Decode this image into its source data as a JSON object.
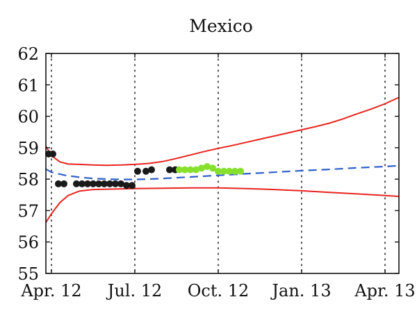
{
  "chart_data": {
    "type": "line",
    "title": "Mexico",
    "xlabel": "",
    "ylabel": "",
    "ylim": [
      55,
      62
    ],
    "yticks": [
      55,
      56,
      57,
      58,
      59,
      60,
      61,
      62
    ],
    "xlim": [
      -0.2,
      12.5
    ],
    "xticks": [
      {
        "x": 0,
        "label": "Apr. 12"
      },
      {
        "x": 3,
        "label": "Jul. 12"
      },
      {
        "x": 6,
        "label": "Oct. 12"
      },
      {
        "x": 9,
        "label": "Jan. 13"
      },
      {
        "x": 12,
        "label": "Apr. 13"
      }
    ],
    "grid": "vertical dotted lines at x ticks",
    "colors": {
      "band": "#e8231d",
      "central": "#2f5fc9",
      "observed": "#1a1a1a",
      "recent": "#86e02c"
    },
    "series": [
      {
        "style": "solid",
        "color": "#e8231d",
        "x": [
          -0.2,
          0,
          0.3,
          0.6,
          1,
          1.5,
          2,
          2.5,
          3,
          3.5,
          4,
          4.5,
          5,
          5.5,
          6,
          6.5,
          7,
          7.5,
          8,
          8.5,
          9,
          9.5,
          10,
          10.5,
          11,
          11.5,
          12,
          12.5
        ],
        "y": [
          59.05,
          58.75,
          58.55,
          58.48,
          58.47,
          58.45,
          58.44,
          58.45,
          58.47,
          58.5,
          58.56,
          58.66,
          58.77,
          58.88,
          58.98,
          59.07,
          59.17,
          59.27,
          59.37,
          59.47,
          59.57,
          59.67,
          59.78,
          59.92,
          60.08,
          60.23,
          60.4,
          60.6
        ]
      },
      {
        "style": "solid",
        "color": "#e8231d",
        "x": [
          -0.2,
          0,
          0.3,
          0.6,
          1,
          1.5,
          2,
          3,
          4,
          5,
          6,
          7,
          8,
          9,
          10,
          11,
          12,
          12.5
        ],
        "y": [
          56.62,
          56.9,
          57.25,
          57.48,
          57.62,
          57.67,
          57.68,
          57.7,
          57.71,
          57.72,
          57.72,
          57.7,
          57.67,
          57.63,
          57.58,
          57.53,
          57.48,
          57.45
        ]
      },
      {
        "style": "dashed",
        "color": "#2f5fc9",
        "x": [
          -0.2,
          0,
          0.5,
          1,
          1.5,
          2,
          2.5,
          3,
          3.5,
          4,
          5,
          6,
          7,
          8,
          9,
          10,
          11,
          12,
          12.5
        ],
        "y": [
          58.32,
          58.22,
          58.12,
          58.06,
          58.02,
          58.0,
          57.99,
          57.99,
          58.0,
          58.02,
          58.07,
          58.12,
          58.17,
          58.22,
          58.27,
          58.31,
          58.36,
          58.4,
          58.43
        ]
      }
    ],
    "points": [
      {
        "color": "#1a1a1a",
        "x": [
          -0.1,
          0.05,
          0.25,
          0.45,
          0.9,
          1.1,
          1.3,
          1.5,
          1.7,
          1.9,
          2.1,
          2.3,
          2.5,
          2.7,
          2.9,
          3.1,
          3.4,
          3.6,
          4.25,
          4.45
        ],
        "y": [
          58.8,
          58.8,
          57.85,
          57.85,
          57.85,
          57.85,
          57.85,
          57.85,
          57.85,
          57.85,
          57.85,
          57.85,
          57.85,
          57.8,
          57.8,
          58.25,
          58.25,
          58.3,
          58.3,
          58.3
        ]
      },
      {
        "color": "#86e02c",
        "x": [
          4.6,
          4.8,
          5.0,
          5.2,
          5.4,
          5.6,
          5.8,
          6.0,
          6.2,
          6.4,
          6.6,
          6.8
        ],
        "y": [
          58.3,
          58.3,
          58.3,
          58.3,
          58.35,
          58.4,
          58.35,
          58.25,
          58.25,
          58.25,
          58.25,
          58.25
        ]
      }
    ]
  }
}
